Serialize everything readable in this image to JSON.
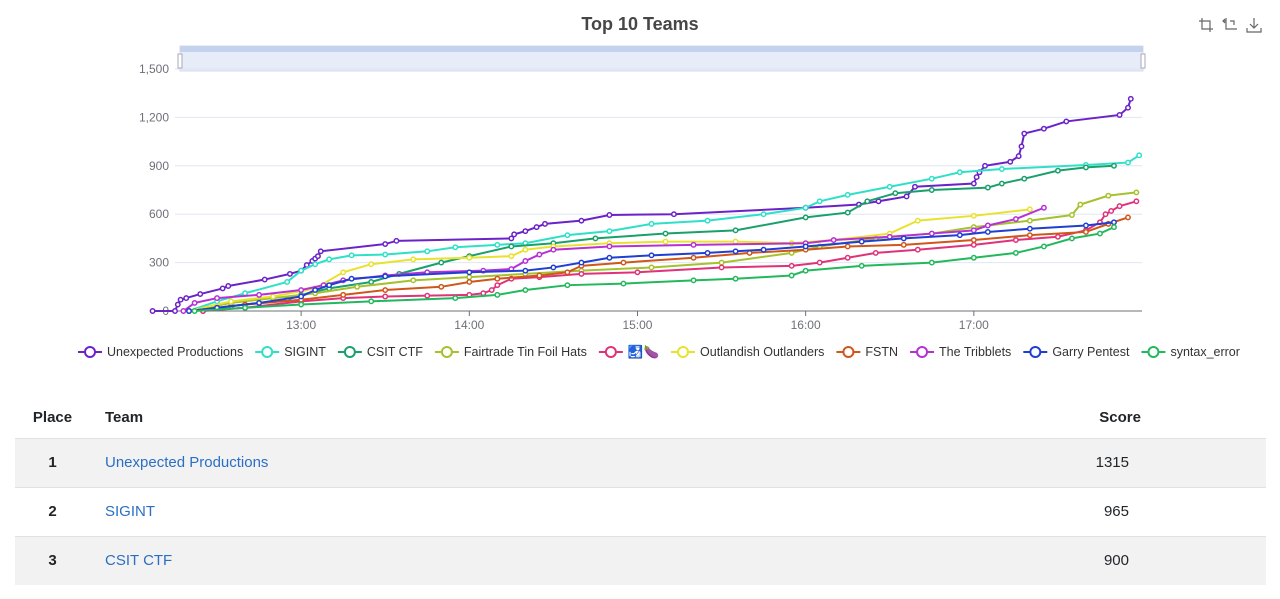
{
  "chart_data": {
    "type": "line",
    "title": "Top 10 Teams",
    "x_ticks": [
      "13:00",
      "14:00",
      "15:00",
      "16:00",
      "17:00"
    ],
    "y_ticks": [
      "0",
      "300",
      "600",
      "900",
      "1,200",
      "1,500"
    ],
    "ylim": [
      0,
      1500
    ],
    "xlim": [
      "12:15",
      "18:00"
    ],
    "grid": "horizontal",
    "legend_position": "bottom",
    "series": [
      {
        "name": "Unexpected Productions",
        "color": "#6b22c9",
        "points": [
          [
            "12:15",
            0
          ],
          [
            "12:16",
            40
          ],
          [
            "12:17",
            70
          ],
          [
            "12:19",
            80
          ],
          [
            "12:24",
            105
          ],
          [
            "12:32",
            140
          ],
          [
            "12:34",
            155
          ],
          [
            "12:47",
            195
          ],
          [
            "12:56",
            230
          ],
          [
            "12:07",
            0
          ],
          [
            "13:00",
            250
          ],
          [
            "13:02",
            285
          ],
          [
            "13:04",
            310
          ],
          [
            "13:05",
            325
          ],
          [
            "13:06",
            340
          ],
          [
            "13:07",
            370
          ],
          [
            "13:30",
            415
          ],
          [
            "13:34",
            435
          ],
          [
            "14:15",
            450
          ],
          [
            "14:16",
            475
          ],
          [
            "14:20",
            495
          ],
          [
            "14:24",
            520
          ],
          [
            "14:27",
            540
          ],
          [
            "14:40",
            560
          ],
          [
            "14:50",
            595
          ],
          [
            "15:13",
            600
          ],
          [
            "16:00",
            640
          ],
          [
            "16:19",
            660
          ],
          [
            "16:26",
            680
          ],
          [
            "16:36",
            710
          ],
          [
            "16:39",
            770
          ],
          [
            "17:00",
            790
          ],
          [
            "17:01",
            830
          ],
          [
            "17:02",
            860
          ],
          [
            "17:04",
            900
          ],
          [
            "17:13",
            925
          ],
          [
            "17:16",
            960
          ],
          [
            "17:17",
            1020
          ],
          [
            "17:18",
            1100
          ],
          [
            "17:25",
            1130
          ],
          [
            "17:33",
            1175
          ],
          [
            "17:52",
            1215
          ],
          [
            "17:55",
            1260
          ],
          [
            "17:56",
            1315
          ]
        ]
      },
      {
        "name": "SIGINT",
        "color": "#2fe0c8",
        "points": [
          [
            "12:20",
            0
          ],
          [
            "12:30",
            60
          ],
          [
            "12:40",
            110
          ],
          [
            "12:55",
            180
          ],
          [
            "13:00",
            250
          ],
          [
            "13:05",
            290
          ],
          [
            "13:10",
            320
          ],
          [
            "13:18",
            345
          ],
          [
            "13:30",
            350
          ],
          [
            "13:45",
            370
          ],
          [
            "13:55",
            395
          ],
          [
            "14:10",
            410
          ],
          [
            "14:20",
            420
          ],
          [
            "14:35",
            470
          ],
          [
            "14:50",
            495
          ],
          [
            "15:05",
            540
          ],
          [
            "15:25",
            560
          ],
          [
            "15:45",
            600
          ],
          [
            "16:00",
            640
          ],
          [
            "16:05",
            680
          ],
          [
            "16:15",
            720
          ],
          [
            "16:30",
            770
          ],
          [
            "16:45",
            820
          ],
          [
            "16:55",
            860
          ],
          [
            "17:10",
            880
          ],
          [
            "17:40",
            905
          ],
          [
            "17:55",
            920
          ],
          [
            "17:59",
            965
          ]
        ]
      },
      {
        "name": "CSIT CTF",
        "color": "#19a06b",
        "points": [
          [
            "12:25",
            0
          ],
          [
            "12:35",
            30
          ],
          [
            "12:45",
            50
          ],
          [
            "12:55",
            70
          ],
          [
            "13:00",
            100
          ],
          [
            "13:10",
            140
          ],
          [
            "13:25",
            180
          ],
          [
            "13:35",
            230
          ],
          [
            "13:50",
            300
          ],
          [
            "14:00",
            340
          ],
          [
            "14:15",
            400
          ],
          [
            "14:30",
            420
          ],
          [
            "14:45",
            450
          ],
          [
            "15:10",
            480
          ],
          [
            "15:35",
            500
          ],
          [
            "16:00",
            580
          ],
          [
            "16:15",
            610
          ],
          [
            "16:22",
            680
          ],
          [
            "16:32",
            730
          ],
          [
            "16:45",
            750
          ],
          [
            "17:05",
            765
          ],
          [
            "17:10",
            790
          ],
          [
            "17:18",
            820
          ],
          [
            "17:30",
            870
          ],
          [
            "17:40",
            890
          ],
          [
            "17:50",
            900
          ]
        ]
      },
      {
        "name": "Fairtrade Tin Foil Hats",
        "color": "#a5c22d",
        "points": [
          [
            "12:20",
            0
          ],
          [
            "12:35",
            50
          ],
          [
            "12:50",
            80
          ],
          [
            "13:05",
            110
          ],
          [
            "13:20",
            150
          ],
          [
            "13:40",
            190
          ],
          [
            "14:00",
            210
          ],
          [
            "14:20",
            230
          ],
          [
            "14:40",
            250
          ],
          [
            "15:05",
            270
          ],
          [
            "15:30",
            300
          ],
          [
            "15:55",
            360
          ],
          [
            "16:05",
            400
          ],
          [
            "16:25",
            450
          ],
          [
            "16:45",
            480
          ],
          [
            "17:00",
            520
          ],
          [
            "17:20",
            560
          ],
          [
            "17:35",
            595
          ],
          [
            "17:38",
            660
          ],
          [
            "17:48",
            715
          ],
          [
            "17:58",
            735
          ]
        ]
      },
      {
        "name": "🛃🍆",
        "color": "#e0327a",
        "points": [
          [
            "12:25",
            0
          ],
          [
            "12:40",
            20
          ],
          [
            "13:00",
            60
          ],
          [
            "13:15",
            80
          ],
          [
            "13:30",
            90
          ],
          [
            "13:45",
            95
          ],
          [
            "14:00",
            100
          ],
          [
            "14:05",
            110
          ],
          [
            "14:08",
            130
          ],
          [
            "14:10",
            160
          ],
          [
            "14:15",
            200
          ],
          [
            "14:25",
            210
          ],
          [
            "14:40",
            230
          ],
          [
            "15:00",
            240
          ],
          [
            "15:30",
            270
          ],
          [
            "15:55",
            280
          ],
          [
            "16:05",
            300
          ],
          [
            "16:15",
            330
          ],
          [
            "16:25",
            360
          ],
          [
            "16:40",
            380
          ],
          [
            "17:00",
            410
          ],
          [
            "17:15",
            440
          ],
          [
            "17:30",
            460
          ],
          [
            "17:40",
            500
          ],
          [
            "17:45",
            550
          ],
          [
            "17:47",
            600
          ],
          [
            "17:49",
            620
          ],
          [
            "17:52",
            650
          ],
          [
            "17:58",
            680
          ]
        ]
      },
      {
        "name": "Outlandish Outlanders",
        "color": "#e8e22d",
        "points": [
          [
            "12:20",
            0
          ],
          [
            "12:35",
            60
          ],
          [
            "12:50",
            90
          ],
          [
            "13:05",
            140
          ],
          [
            "13:15",
            240
          ],
          [
            "13:25",
            290
          ],
          [
            "13:40",
            320
          ],
          [
            "14:00",
            330
          ],
          [
            "14:15",
            340
          ],
          [
            "14:20",
            380
          ],
          [
            "14:30",
            400
          ],
          [
            "14:50",
            420
          ],
          [
            "15:10",
            430
          ],
          [
            "15:35",
            430
          ],
          [
            "15:55",
            420
          ],
          [
            "16:10",
            440
          ],
          [
            "16:30",
            480
          ],
          [
            "16:40",
            560
          ],
          [
            "17:00",
            590
          ],
          [
            "17:20",
            630
          ]
        ]
      },
      {
        "name": "FSTN",
        "color": "#d0561a",
        "points": [
          [
            "12:20",
            0
          ],
          [
            "12:40",
            40
          ],
          [
            "13:00",
            70
          ],
          [
            "13:15",
            100
          ],
          [
            "13:30",
            130
          ],
          [
            "13:50",
            150
          ],
          [
            "14:00",
            180
          ],
          [
            "14:10",
            200
          ],
          [
            "14:25",
            220
          ],
          [
            "14:35",
            240
          ],
          [
            "14:40",
            280
          ],
          [
            "14:55",
            300
          ],
          [
            "15:20",
            330
          ],
          [
            "15:40",
            360
          ],
          [
            "16:00",
            380
          ],
          [
            "16:15",
            400
          ],
          [
            "16:35",
            410
          ],
          [
            "17:00",
            440
          ],
          [
            "17:20",
            470
          ],
          [
            "17:40",
            490
          ],
          [
            "17:48",
            540
          ],
          [
            "17:55",
            580
          ]
        ]
      },
      {
        "name": "The Tribblets",
        "color": "#b630d6",
        "points": [
          [
            "12:18",
            0
          ],
          [
            "12:22",
            50
          ],
          [
            "12:30",
            80
          ],
          [
            "12:45",
            100
          ],
          [
            "13:00",
            130
          ],
          [
            "13:08",
            160
          ],
          [
            "13:15",
            190
          ],
          [
            "13:30",
            220
          ],
          [
            "13:45",
            240
          ],
          [
            "14:05",
            250
          ],
          [
            "14:15",
            260
          ],
          [
            "14:20",
            310
          ],
          [
            "14:25",
            350
          ],
          [
            "14:30",
            380
          ],
          [
            "14:50",
            400
          ],
          [
            "15:20",
            410
          ],
          [
            "16:00",
            420
          ],
          [
            "16:10",
            440
          ],
          [
            "16:30",
            460
          ],
          [
            "16:45",
            480
          ],
          [
            "17:00",
            500
          ],
          [
            "17:05",
            530
          ],
          [
            "17:15",
            570
          ],
          [
            "17:25",
            640
          ]
        ]
      },
      {
        "name": "Garry Pentest",
        "color": "#1f3fd1",
        "points": [
          [
            "12:20",
            0
          ],
          [
            "12:30",
            20
          ],
          [
            "12:45",
            50
          ],
          [
            "13:00",
            90
          ],
          [
            "13:05",
            130
          ],
          [
            "13:10",
            160
          ],
          [
            "13:18",
            200
          ],
          [
            "13:30",
            215
          ],
          [
            "14:00",
            240
          ],
          [
            "14:20",
            250
          ],
          [
            "14:30",
            270
          ],
          [
            "14:40",
            300
          ],
          [
            "14:50",
            330
          ],
          [
            "15:05",
            345
          ],
          [
            "15:25",
            360
          ],
          [
            "15:35",
            370
          ],
          [
            "15:45",
            380
          ],
          [
            "16:00",
            400
          ],
          [
            "16:20",
            430
          ],
          [
            "16:35",
            450
          ],
          [
            "16:55",
            470
          ],
          [
            "17:05",
            490
          ],
          [
            "17:20",
            510
          ],
          [
            "17:40",
            530
          ],
          [
            "17:50",
            550
          ]
        ]
      },
      {
        "name": "syntax_error",
        "color": "#22b85c",
        "points": [
          [
            "12:22",
            0
          ],
          [
            "12:40",
            20
          ],
          [
            "13:00",
            40
          ],
          [
            "13:25",
            60
          ],
          [
            "13:55",
            80
          ],
          [
            "14:10",
            100
          ],
          [
            "14:20",
            130
          ],
          [
            "14:35",
            160
          ],
          [
            "14:55",
            170
          ],
          [
            "15:20",
            190
          ],
          [
            "15:35",
            200
          ],
          [
            "15:55",
            220
          ],
          [
            "16:00",
            250
          ],
          [
            "16:20",
            280
          ],
          [
            "16:45",
            300
          ],
          [
            "17:00",
            330
          ],
          [
            "17:15",
            360
          ],
          [
            "17:25",
            400
          ],
          [
            "17:35",
            450
          ],
          [
            "17:45",
            480
          ],
          [
            "17:50",
            520
          ]
        ]
      }
    ]
  },
  "table": {
    "headers": {
      "place": "Place",
      "team": "Team",
      "score": "Score"
    },
    "rows": [
      {
        "place": "1",
        "team": "Unexpected Productions",
        "score": "1315"
      },
      {
        "place": "2",
        "team": "SIGINT",
        "score": "965"
      },
      {
        "place": "3",
        "team": "CSIT CTF",
        "score": "900"
      }
    ]
  },
  "toolbox": {
    "icons": [
      "zoom-icon",
      "zoom-reset-icon",
      "download-icon"
    ]
  }
}
